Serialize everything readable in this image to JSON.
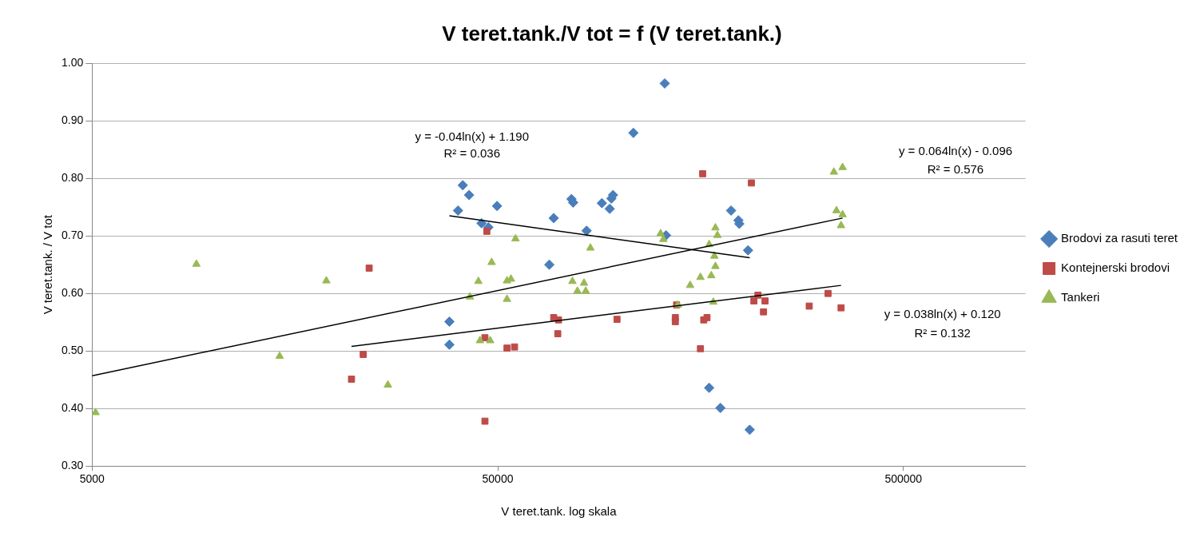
{
  "chart_data": {
    "type": "scatter",
    "title": "V teret.tank./V tot = f (V teret.tank.)",
    "xlabel": "V teret.tank. log skala",
    "ylabel": "V teret.tank. / V tot",
    "log": "x",
    "xlim": [
      5000,
      1000000
    ],
    "xticks": [
      5000,
      50000,
      500000
    ],
    "ylim": [
      0.3,
      1.0
    ],
    "yticks": [
      {
        "value": 0.3,
        "label": "0.30"
      },
      {
        "value": 0.4,
        "label": "0.40"
      },
      {
        "value": 0.5,
        "label": "0.50"
      },
      {
        "value": 0.6,
        "label": "0.60"
      },
      {
        "value": 0.7,
        "label": "0.70"
      },
      {
        "value": 0.8,
        "label": "0.80"
      },
      {
        "value": 0.9,
        "label": "0.90"
      },
      {
        "value": 1.0,
        "label": "1.00"
      }
    ],
    "grid": "y",
    "legend": "right",
    "series": [
      {
        "name": "Brodovi za rasuti teret",
        "marker": "diamond",
        "color": "#4a7ebb",
        "x": [
          38000,
          38000,
          39900,
          41000,
          42500,
          45600,
          47400,
          49800,
          67000,
          68700,
          76000,
          76700,
          82800,
          90300,
          94400,
          95300,
          96200,
          108000,
          129000,
          130000,
          166000,
          177000,
          188000,
          196000,
          197000,
          207000,
          209000
        ],
        "values": [
          0.551,
          0.511,
          0.744,
          0.788,
          0.771,
          0.722,
          0.715,
          0.752,
          0.65,
          0.731,
          0.764,
          0.758,
          0.709,
          0.757,
          0.747,
          0.765,
          0.771,
          0.879,
          0.965,
          0.701,
          0.436,
          0.401,
          0.744,
          0.727,
          0.721,
          0.675,
          0.363
        ]
      },
      {
        "name": "Kontejnerski brodovi",
        "marker": "square",
        "color": "#be4b48",
        "x": [
          21800,
          23300,
          24100,
          46500,
          47000,
          46500,
          52700,
          55000,
          68700,
          70600,
          70300,
          98400,
          160000,
          138000,
          137000,
          137000,
          161000,
          164000,
          158000,
          211000,
          219000,
          214000,
          228000,
          226000,
          293000,
          326000,
          351000
        ],
        "values": [
          0.451,
          0.494,
          0.644,
          0.378,
          0.708,
          0.523,
          0.505,
          0.507,
          0.558,
          0.554,
          0.53,
          0.555,
          0.808,
          0.58,
          0.558,
          0.551,
          0.554,
          0.558,
          0.504,
          0.792,
          0.597,
          0.587,
          0.587,
          0.568,
          0.578,
          0.6,
          0.575
        ]
      },
      {
        "name": "Tankeri",
        "marker": "triangle",
        "color": "#98b954",
        "x": [
          5100,
          9040,
          18900,
          14500,
          26800,
          42700,
          44800,
          45200,
          47900,
          48300,
          55300,
          52700,
          53900,
          52700,
          84600,
          76400,
          78600,
          81600,
          82400,
          126000,
          128000,
          139000,
          149000,
          158000,
          166000,
          168000,
          171000,
          172000,
          172000,
          174000,
          170000,
          337000,
          354000,
          342000,
          354000,
          351000
        ],
        "values": [
          0.393,
          0.651,
          0.622,
          0.491,
          0.441,
          0.594,
          0.621,
          0.518,
          0.518,
          0.654,
          0.695,
          0.622,
          0.625,
          0.59,
          0.679,
          0.621,
          0.604,
          0.618,
          0.604,
          0.704,
          0.694,
          0.58,
          0.614,
          0.628,
          0.685,
          0.631,
          0.665,
          0.647,
          0.714,
          0.701,
          0.585,
          0.811,
          0.819,
          0.744,
          0.737,
          0.718
        ]
      },
      {
        "type": "line",
        "marker": "none",
        "color": "#000000",
        "x": [
          38000,
          209000
        ],
        "values": [
          0.735,
          0.662
        ]
      },
      {
        "type": "line",
        "marker": "none",
        "color": "#000000",
        "x": [
          5000,
          354000
        ],
        "values": [
          0.457,
          0.731
        ]
      },
      {
        "type": "line",
        "marker": "none",
        "color": "#000000",
        "x": [
          21800,
          351000
        ],
        "values": [
          0.508,
          0.614
        ]
      }
    ],
    "annotations": [
      "y = -0.04ln(x) + 1.190",
      "R² = 0.036",
      "y = 0.064ln(x) - 0.096",
      "R² = 0.576",
      "y = 0.038ln(x) + 0.120",
      "R² = 0.132"
    ]
  }
}
